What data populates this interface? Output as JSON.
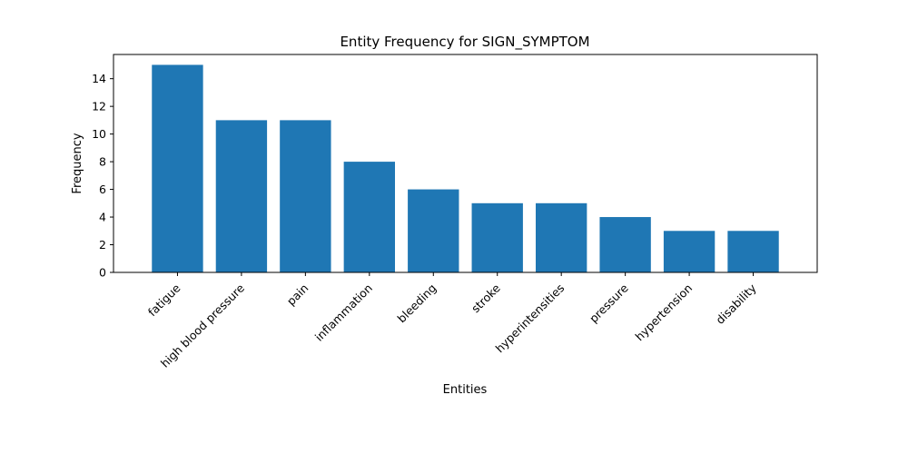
{
  "chart_data": {
    "type": "bar",
    "title": "Entity Frequency for SIGN_SYMPTOM",
    "xlabel": "Entities",
    "ylabel": "Frequency",
    "categories": [
      "fatigue",
      "high blood pressure",
      "pain",
      "inflammation",
      "bleeding",
      "stroke",
      "hyperintensities",
      "pressure",
      "hypertension",
      "disability"
    ],
    "values": [
      15,
      11,
      11,
      8,
      6,
      5,
      5,
      4,
      3,
      3
    ],
    "ylim": [
      0,
      15.75
    ],
    "yticks": [
      0,
      2,
      4,
      6,
      8,
      10,
      12,
      14
    ],
    "bar_color": "#1f77b4",
    "grid": false,
    "legend": "none"
  }
}
